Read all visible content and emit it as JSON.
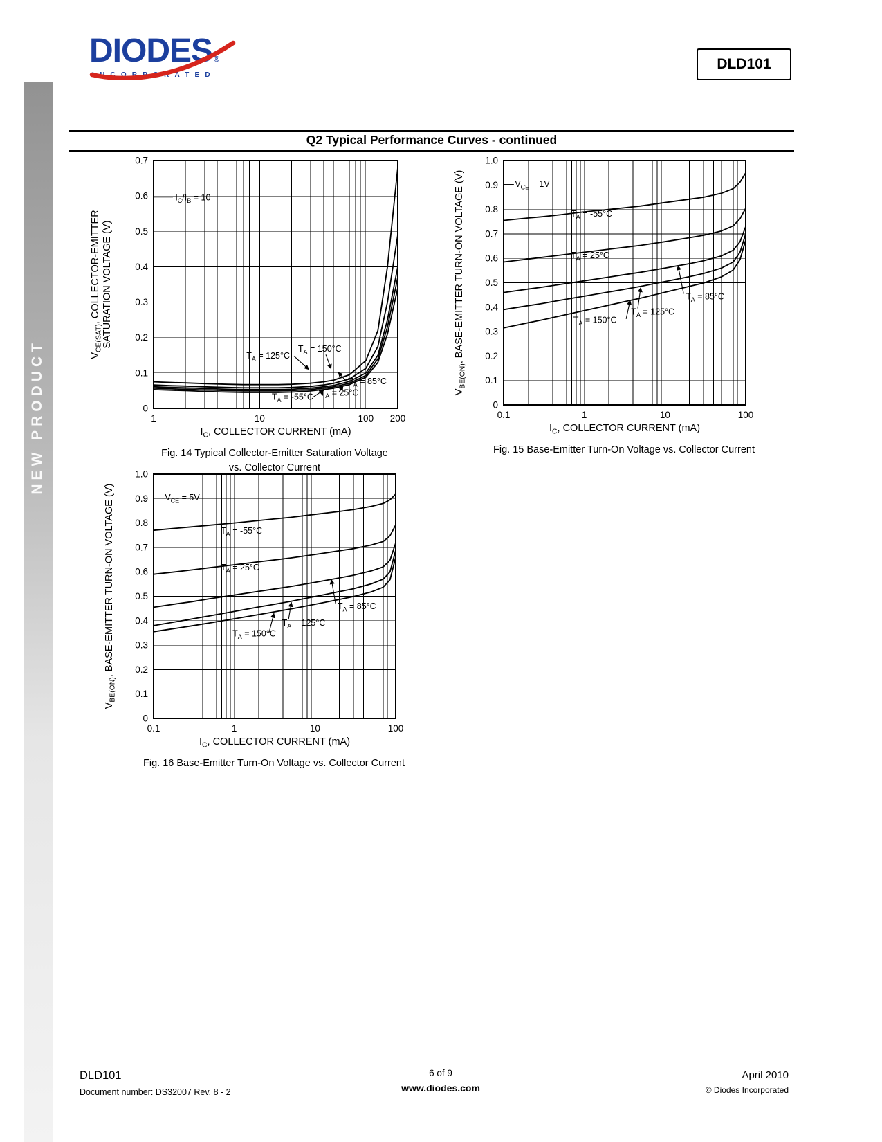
{
  "page": {
    "sidebar_text": "NEW PRODUCT",
    "product_code": "DLD101",
    "section_title": "Q2 Typical Performance Curves - continued",
    "logo": {
      "name": "DIODES",
      "registered": "®",
      "sub": "INCORPORATED"
    }
  },
  "colors": {
    "logo_blue": "#1c3f9e",
    "logo_red": "#d6251d"
  },
  "footer": {
    "left_title": "DLD101",
    "left_sub": "Document number: DS32007 Rev. 8 - 2",
    "center_page": "6 of 9",
    "center_site": "www.diodes.com",
    "right_date": "April 2010",
    "right_copy": "© Diodes Incorporated"
  },
  "chart_data": [
    {
      "id": "fig14",
      "type": "line",
      "caption": "Fig. 14 Typical Collector-Emitter Saturation Voltage\nvs. Collector Current",
      "xlabel": "I~C~, COLLECTOR CURRENT (mA)",
      "ylabel": [
        "V~CE(SAT)~, COLLECTOR-EMITTER",
        "SATURATION VOLTAGE (V)"
      ],
      "xscale": "log",
      "xlim": [
        1,
        200
      ],
      "ylim": [
        0,
        0.7
      ],
      "ytick_step": 0.1,
      "xticks": [
        1,
        10,
        100,
        200
      ],
      "grid": true,
      "legend": "inline-labels",
      "annotations": [
        {
          "text": "I~C~/I~B~ = 10",
          "x": 1.6,
          "y": 0.588,
          "line": [
            [
              1.0,
              0.597
            ],
            [
              1.52,
              0.597
            ]
          ],
          "arrow": false
        },
        {
          "text": "T~A~ = 125°C",
          "x": 7.5,
          "y": 0.141,
          "line": [
            [
              21,
              0.148
            ],
            [
              29,
              0.11
            ]
          ],
          "arrow": true
        },
        {
          "text": "T~A~ = 150°C",
          "x": 23,
          "y": 0.16,
          "line": [
            [
              42,
              0.152
            ],
            [
              47,
              0.112
            ]
          ],
          "arrow": true
        },
        {
          "text": "T~A~ = 85°C",
          "x": 68,
          "y": 0.068,
          "line": [
            [
              64,
              0.08
            ],
            [
              55,
              0.102
            ]
          ],
          "arrow": true
        },
        {
          "text": "T~A~ = 25°C",
          "x": 37,
          "y": 0.036,
          "line": [
            [
              56,
              0.046
            ],
            [
              61,
              0.064
            ]
          ],
          "arrow": true
        },
        {
          "text": "T~A~ = -55°C",
          "x": 13,
          "y": 0.024,
          "line": [
            [
              32,
              0.032
            ],
            [
              40,
              0.052
            ]
          ],
          "arrow": true
        }
      ],
      "x": [
        1,
        1.5,
        2,
        3,
        5,
        7,
        10,
        15,
        20,
        30,
        40,
        50,
        70,
        100,
        130,
        160,
        200
      ],
      "series": [
        {
          "name": "TA = -55°C",
          "values": [
            0.075,
            0.073,
            0.072,
            0.07,
            0.068,
            0.067,
            0.067,
            0.067,
            0.068,
            0.071,
            0.075,
            0.08,
            0.095,
            0.135,
            0.22,
            0.4,
            0.68
          ]
        },
        {
          "name": "TA = 25°C",
          "values": [
            0.066,
            0.064,
            0.063,
            0.061,
            0.059,
            0.058,
            0.058,
            0.058,
            0.059,
            0.062,
            0.066,
            0.071,
            0.083,
            0.113,
            0.175,
            0.3,
            0.49
          ]
        },
        {
          "name": "TA = 85°C",
          "values": [
            0.061,
            0.059,
            0.058,
            0.056,
            0.054,
            0.053,
            0.053,
            0.053,
            0.054,
            0.057,
            0.061,
            0.065,
            0.076,
            0.1,
            0.15,
            0.25,
            0.4
          ]
        },
        {
          "name": "TA = 125°C",
          "values": [
            0.057,
            0.055,
            0.054,
            0.052,
            0.05,
            0.049,
            0.049,
            0.049,
            0.05,
            0.053,
            0.057,
            0.061,
            0.071,
            0.093,
            0.14,
            0.23,
            0.37
          ]
        },
        {
          "name": "TA = 150°C",
          "values": [
            0.053,
            0.051,
            0.05,
            0.048,
            0.046,
            0.045,
            0.045,
            0.045,
            0.046,
            0.049,
            0.053,
            0.057,
            0.067,
            0.088,
            0.13,
            0.21,
            0.34
          ]
        }
      ]
    },
    {
      "id": "fig15",
      "type": "line",
      "caption": "Fig. 15 Base-Emitter Turn-On Voltage vs. Collector Current",
      "xlabel": "I~C~, COLLECTOR CURRENT (mA)",
      "ylabel": [
        "V~BE(ON)~, BASE-EMITTER TURN-ON VOLTAGE (V)"
      ],
      "xscale": "log",
      "xlim": [
        0.1,
        100
      ],
      "ylim": [
        0,
        1.0
      ],
      "ytick_step": 0.1,
      "xticks": [
        0.1,
        1,
        10,
        100
      ],
      "grid": true,
      "legend": "inline-labels",
      "annotations": [
        {
          "text": "V~CE~ = 1V",
          "x": 0.138,
          "y": 0.893,
          "line": [
            [
              0.1,
              0.902
            ],
            [
              0.134,
              0.902
            ]
          ],
          "arrow": false
        },
        {
          "text": "T~A~ = -55°C",
          "x": 0.68,
          "y": 0.77
        },
        {
          "text": "T~A~ = 25°C",
          "x": 0.68,
          "y": 0.6
        },
        {
          "text": "T~A~ = 85°C",
          "x": 18,
          "y": 0.432,
          "line": [
            [
              17,
              0.455
            ],
            [
              14.5,
              0.57
            ]
          ],
          "arrow": true
        },
        {
          "text": "T~A~ = 125°C",
          "x": 3.8,
          "y": 0.37,
          "line": [
            [
              4.6,
              0.395
            ],
            [
              5.0,
              0.48
            ]
          ],
          "arrow": true
        },
        {
          "text": "T~A~ = 150°C",
          "x": 0.73,
          "y": 0.335,
          "line": [
            [
              3.3,
              0.352
            ],
            [
              3.7,
              0.428
            ]
          ],
          "arrow": true
        }
      ],
      "x": [
        0.1,
        0.2,
        0.3,
        0.5,
        1,
        2,
        3,
        5,
        10,
        20,
        30,
        50,
        70,
        85,
        100
      ],
      "series": [
        {
          "name": "TA = -55°C",
          "values": [
            0.755,
            0.765,
            0.77,
            0.778,
            0.79,
            0.8,
            0.806,
            0.814,
            0.828,
            0.842,
            0.85,
            0.866,
            0.885,
            0.912,
            0.95
          ]
        },
        {
          "name": "TA = 25°C",
          "values": [
            0.585,
            0.597,
            0.604,
            0.613,
            0.625,
            0.637,
            0.644,
            0.653,
            0.668,
            0.684,
            0.694,
            0.712,
            0.733,
            0.762,
            0.805
          ]
        },
        {
          "name": "TA = 85°C",
          "values": [
            0.46,
            0.474,
            0.482,
            0.493,
            0.508,
            0.523,
            0.532,
            0.543,
            0.56,
            0.578,
            0.59,
            0.61,
            0.633,
            0.668,
            0.73
          ]
        },
        {
          "name": "TA = 125°C",
          "values": [
            0.39,
            0.406,
            0.415,
            0.428,
            0.445,
            0.462,
            0.472,
            0.485,
            0.505,
            0.525,
            0.538,
            0.56,
            0.585,
            0.625,
            0.7
          ]
        },
        {
          "name": "TA = 150°C",
          "values": [
            0.315,
            0.336,
            0.348,
            0.364,
            0.386,
            0.408,
            0.421,
            0.437,
            0.461,
            0.485,
            0.499,
            0.524,
            0.552,
            0.595,
            0.675
          ]
        }
      ]
    },
    {
      "id": "fig16",
      "type": "line",
      "caption": "Fig. 16 Base-Emitter Turn-On Voltage vs. Collector Current",
      "xlabel": "I~C~, COLLECTOR CURRENT (mA)",
      "ylabel": [
        "V~BE(ON)~, BASE-EMITTER TURN-ON VOLTAGE (V)"
      ],
      "xscale": "log",
      "xlim": [
        0.1,
        100
      ],
      "ylim": [
        0,
        1.0
      ],
      "ytick_step": 0.1,
      "xticks": [
        0.1,
        1,
        10,
        100
      ],
      "grid": true,
      "legend": "inline-labels",
      "annotations": [
        {
          "text": "V~CE~ = 5V",
          "x": 0.138,
          "y": 0.893,
          "line": [
            [
              0.1,
              0.902
            ],
            [
              0.134,
              0.902
            ]
          ],
          "arrow": false
        },
        {
          "text": "T~A~ = -55°C",
          "x": 0.68,
          "y": 0.757
        },
        {
          "text": "T~A~ = 25°C",
          "x": 0.68,
          "y": 0.606
        },
        {
          "text": "T~A~ = 85°C",
          "x": 19,
          "y": 0.448,
          "line": [
            [
              18,
              0.47
            ],
            [
              16,
              0.568
            ]
          ],
          "arrow": true
        },
        {
          "text": "T~A~ = 125°C",
          "x": 3.9,
          "y": 0.38,
          "line": [
            [
              4.7,
              0.405
            ],
            [
              5.1,
              0.475
            ]
          ],
          "arrow": true
        },
        {
          "text": "T~A~ = 150°C",
          "x": 0.95,
          "y": 0.335,
          "line": [
            [
              2.7,
              0.352
            ],
            [
              3.1,
              0.43
            ]
          ],
          "arrow": true
        }
      ],
      "x": [
        0.1,
        0.2,
        0.3,
        0.5,
        1,
        2,
        3,
        5,
        10,
        20,
        30,
        50,
        70,
        85,
        100
      ],
      "series": [
        {
          "name": "TA = -55°C",
          "values": [
            0.77,
            0.779,
            0.784,
            0.791,
            0.8,
            0.81,
            0.816,
            0.823,
            0.835,
            0.847,
            0.855,
            0.868,
            0.88,
            0.895,
            0.918
          ]
        },
        {
          "name": "TA = 25°C",
          "values": [
            0.59,
            0.601,
            0.608,
            0.617,
            0.629,
            0.641,
            0.648,
            0.657,
            0.671,
            0.686,
            0.695,
            0.71,
            0.724,
            0.748,
            0.792
          ]
        },
        {
          "name": "TA = 85°C",
          "values": [
            0.455,
            0.47,
            0.478,
            0.49,
            0.505,
            0.52,
            0.529,
            0.54,
            0.557,
            0.575,
            0.586,
            0.604,
            0.62,
            0.648,
            0.718
          ]
        },
        {
          "name": "TA = 125°C",
          "values": [
            0.38,
            0.397,
            0.407,
            0.42,
            0.438,
            0.456,
            0.466,
            0.479,
            0.499,
            0.519,
            0.531,
            0.551,
            0.57,
            0.6,
            0.688
          ]
        },
        {
          "name": "TA = 150°C",
          "values": [
            0.355,
            0.37,
            0.379,
            0.391,
            0.408,
            0.425,
            0.435,
            0.448,
            0.467,
            0.487,
            0.499,
            0.518,
            0.537,
            0.568,
            0.66
          ]
        }
      ]
    }
  ]
}
